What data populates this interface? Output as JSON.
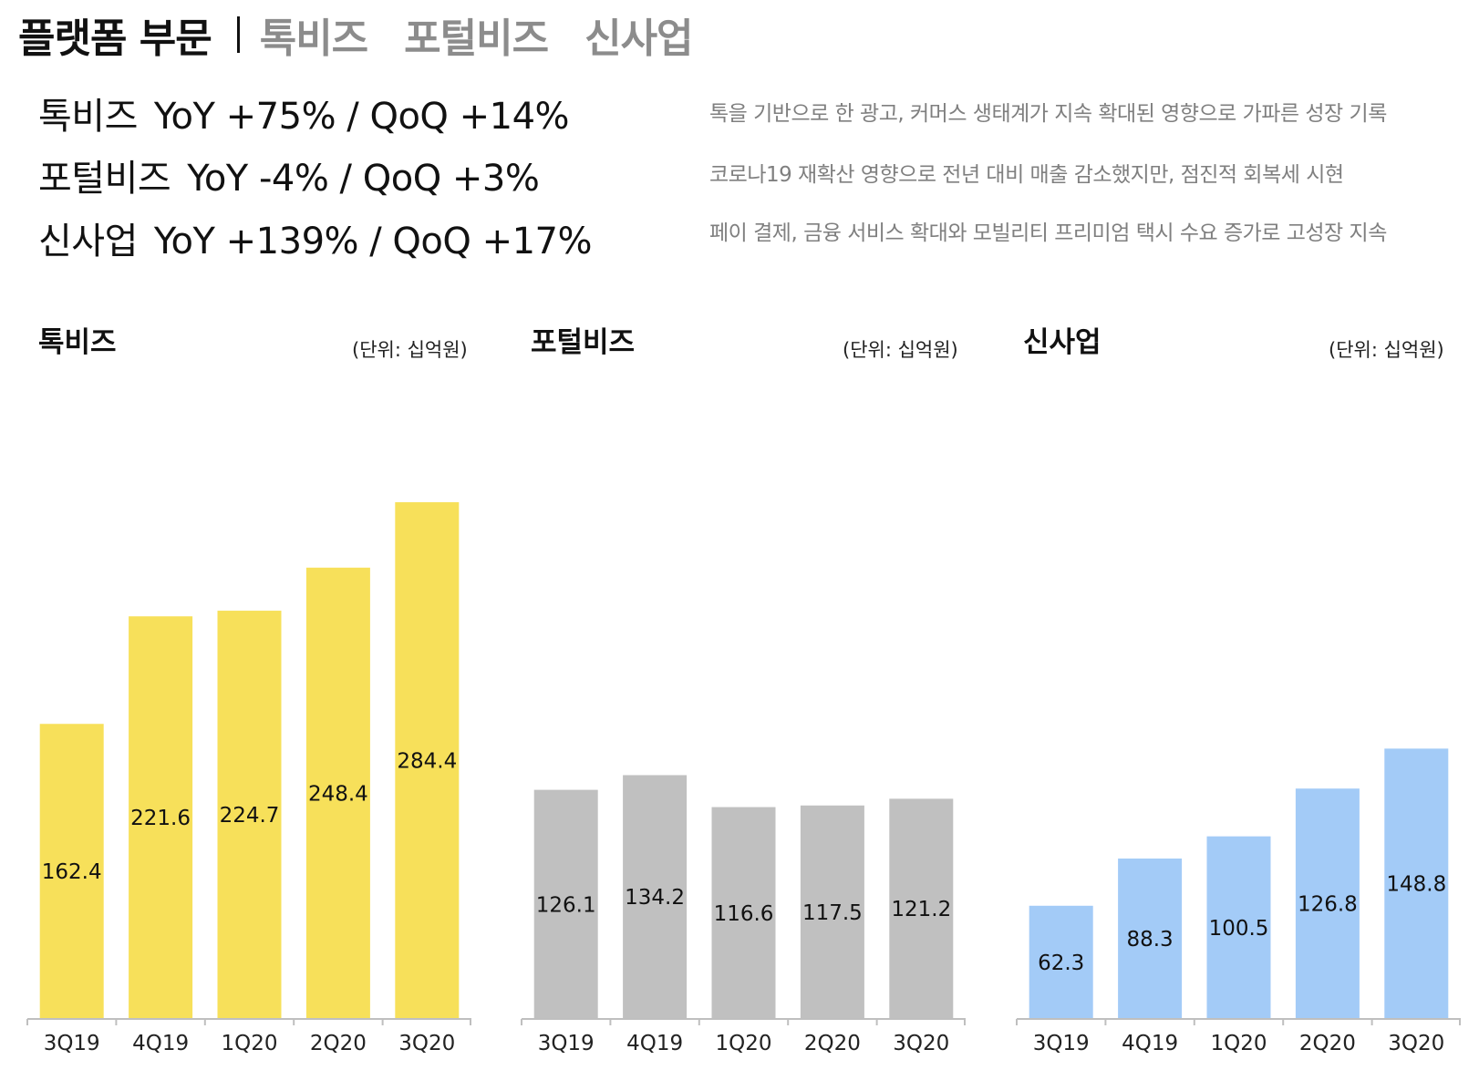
{
  "header": {
    "title": "플랫폼 부문",
    "tabs": [
      "톡비즈",
      "포털비즈",
      "신사업"
    ]
  },
  "summary": [
    {
      "name": "톡비즈",
      "growth": "YoY +75% / QoQ +14%",
      "note": "톡을 기반으로 한 광고, 커머스 생태계가 지속 확대된 영향으로 가파른 성장 기록"
    },
    {
      "name": "포털비즈",
      "growth": "YoY -4% / QoQ +3%",
      "note": "코로나19 재확산 영향으로 전년 대비 매출 감소했지만, 점진적 회복세 시현"
    },
    {
      "name": "신사업",
      "growth": "YoY +139% / QoQ +17%",
      "note": "페이 결제, 금융 서비스 확대와 모빌리티 프리미엄 택시 수요 증가로 고성장 지속"
    }
  ],
  "colors": {
    "talkbiz": "#f7e05a",
    "portalbiz": "#c0c0c0",
    "newbiz": "#a3cbf7",
    "axis": "#bfbfbf"
  },
  "chart_data": [
    {
      "type": "bar",
      "title": "톡비즈",
      "unit": "(단위: 십억원)",
      "categories": [
        "3Q19",
        "4Q19",
        "1Q20",
        "2Q20",
        "3Q20"
      ],
      "values": [
        162.4,
        221.6,
        224.7,
        248.4,
        284.4
      ],
      "ylim": [
        0,
        310
      ]
    },
    {
      "type": "bar",
      "title": "포털비즈",
      "unit": "(단위: 십억원)",
      "categories": [
        "3Q19",
        "4Q19",
        "1Q20",
        "2Q20",
        "3Q20"
      ],
      "values": [
        126.1,
        134.2,
        116.6,
        117.5,
        121.2
      ],
      "ylim": [
        0,
        310
      ]
    },
    {
      "type": "bar",
      "title": "신사업",
      "unit": "(단위: 십억원)",
      "categories": [
        "3Q19",
        "4Q19",
        "1Q20",
        "2Q20",
        "3Q20"
      ],
      "values": [
        62.3,
        88.3,
        100.5,
        126.8,
        148.8
      ],
      "ylim": [
        0,
        310
      ]
    }
  ]
}
